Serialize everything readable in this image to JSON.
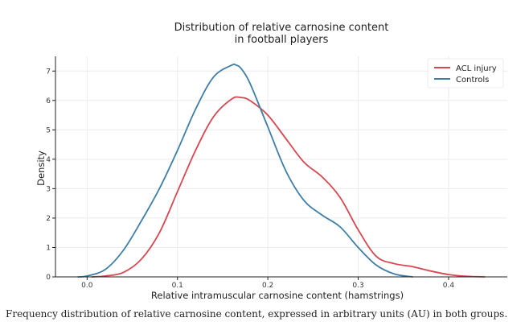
{
  "caption": "Frequency distribution of relative carnosine content, expressed in arbitrary units (AU) in both groups.",
  "chart_data": {
    "type": "line",
    "title_lines": [
      "Distribution of relative carnosine content",
      "in football players"
    ],
    "xlabel": "Relative intramuscular carnosine content (hamstrings)",
    "ylabel": "Density",
    "xlim": [
      -0.035,
      0.465
    ],
    "ylim": [
      0,
      7.5
    ],
    "xticks": [
      0.0,
      0.1,
      0.2,
      0.3,
      0.4
    ],
    "xtick_labels": [
      "0.0",
      "0.1",
      "0.2",
      "0.3",
      "0.4"
    ],
    "yticks": [
      0,
      1,
      2,
      3,
      4,
      5,
      6,
      7
    ],
    "ytick_labels": [
      "0",
      "1",
      "2",
      "3",
      "4",
      "5",
      "6",
      "7"
    ],
    "grid": true,
    "legend_position": "top-right",
    "series": [
      {
        "name": "ACL injury",
        "color": "#d7474f",
        "x": [
          0.005,
          0.02,
          0.04,
          0.06,
          0.08,
          0.1,
          0.12,
          0.14,
          0.16,
          0.17,
          0.18,
          0.2,
          0.22,
          0.24,
          0.26,
          0.28,
          0.3,
          0.32,
          0.34,
          0.36,
          0.38,
          0.4,
          0.42,
          0.44
        ],
        "y": [
          0.0,
          0.03,
          0.15,
          0.6,
          1.5,
          2.9,
          4.3,
          5.45,
          6.05,
          6.1,
          6.0,
          5.5,
          4.7,
          3.9,
          3.4,
          2.7,
          1.6,
          0.7,
          0.45,
          0.35,
          0.2,
          0.08,
          0.02,
          0.0
        ]
      },
      {
        "name": "Controls",
        "color": "#3d7ea6",
        "x": [
          -0.01,
          0.0,
          0.02,
          0.04,
          0.06,
          0.08,
          0.1,
          0.12,
          0.14,
          0.16,
          0.165,
          0.17,
          0.18,
          0.2,
          0.22,
          0.24,
          0.26,
          0.28,
          0.3,
          0.32,
          0.34,
          0.36
        ],
        "y": [
          0.0,
          0.03,
          0.25,
          0.9,
          1.9,
          3.0,
          4.3,
          5.7,
          6.8,
          7.2,
          7.2,
          7.1,
          6.6,
          5.1,
          3.6,
          2.6,
          2.1,
          1.7,
          1.0,
          0.4,
          0.1,
          0.0
        ]
      }
    ]
  }
}
